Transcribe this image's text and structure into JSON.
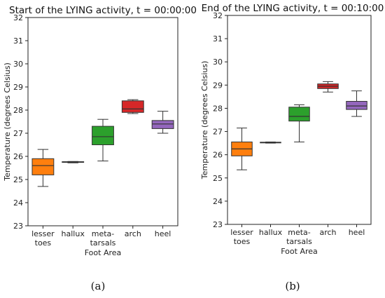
{
  "chart_data": [
    {
      "type": "box",
      "title": "Start of the LYING activity, t = 00:00:00",
      "xlabel": "Foot Area",
      "ylabel": "Temperature (degrees Celsius)",
      "ylim": [
        23,
        32
      ],
      "yticks": [
        23,
        24,
        25,
        26,
        27,
        28,
        29,
        30,
        31,
        32
      ],
      "grid": false,
      "categories": [
        {
          "line1": "lesser",
          "line2": "toes",
          "color": "#ff7f0e",
          "min": 24.7,
          "q1": 25.2,
          "median": 25.6,
          "q3": 25.9,
          "max": 26.3
        },
        {
          "line1": "hallux",
          "line2": "",
          "color": "#1f77b4",
          "min": 25.72,
          "q1": 25.74,
          "median": 25.75,
          "q3": 25.77,
          "max": 25.78
        },
        {
          "line1": "meta-",
          "line2": "tarsals",
          "color": "#2ca02c",
          "min": 25.8,
          "q1": 26.5,
          "median": 26.85,
          "q3": 27.3,
          "max": 27.6
        },
        {
          "line1": "arch",
          "line2": "",
          "color": "#d62728",
          "min": 27.85,
          "q1": 27.9,
          "median": 28.05,
          "q3": 28.4,
          "max": 28.45
        },
        {
          "line1": "heel",
          "line2": "",
          "color": "#9467bd",
          "min": 27.0,
          "q1": 27.2,
          "median": 27.4,
          "q3": 27.55,
          "max": 27.95
        }
      ],
      "caption": "(a)"
    },
    {
      "type": "box",
      "title": "End of the LYING activity, t = 00:10:00",
      "xlabel": "Foot Area",
      "ylabel": "Temperature (degrees Celsius)",
      "ylim": [
        23,
        32
      ],
      "yticks": [
        23,
        24,
        25,
        26,
        27,
        28,
        29,
        30,
        31,
        32
      ],
      "grid": false,
      "categories": [
        {
          "line1": "lesser",
          "line2": "toes",
          "color": "#ff7f0e",
          "min": 25.35,
          "q1": 25.95,
          "median": 26.25,
          "q3": 26.55,
          "max": 27.15
        },
        {
          "line1": "hallux",
          "line2": "",
          "color": "#1f77b4",
          "min": 26.5,
          "q1": 26.51,
          "median": 26.53,
          "q3": 26.54,
          "max": 26.55
        },
        {
          "line1": "meta-",
          "line2": "tarsals",
          "color": "#2ca02c",
          "min": 26.55,
          "q1": 27.45,
          "median": 27.65,
          "q3": 28.05,
          "max": 28.15
        },
        {
          "line1": "arch",
          "line2": "",
          "color": "#d62728",
          "min": 28.7,
          "q1": 28.85,
          "median": 28.95,
          "q3": 29.05,
          "max": 29.15
        },
        {
          "line1": "heel",
          "line2": "",
          "color": "#9467bd",
          "min": 27.65,
          "q1": 27.95,
          "median": 28.1,
          "q3": 28.3,
          "max": 28.75
        }
      ],
      "caption": "(b)"
    }
  ]
}
